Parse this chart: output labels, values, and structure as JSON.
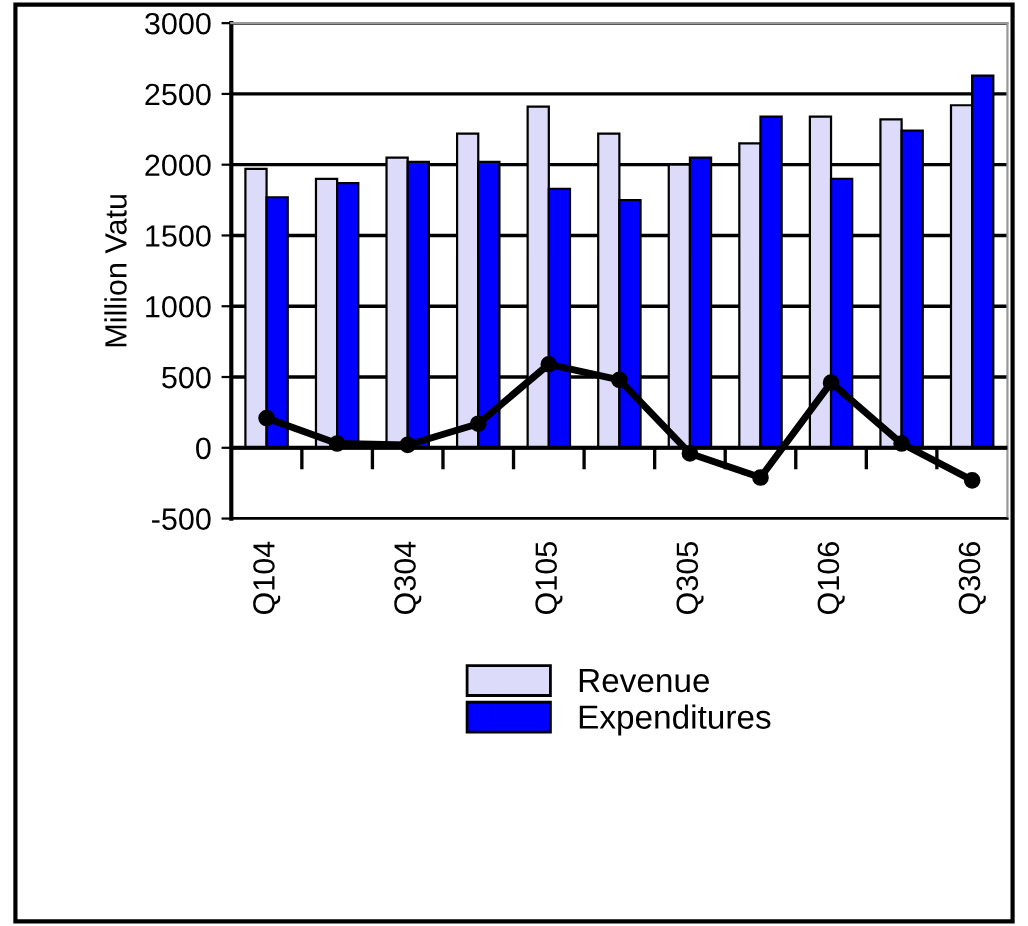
{
  "chart_data": {
    "type": "bar",
    "ylabel": "Million Vatu",
    "categories": [
      "Q104",
      null,
      "Q304",
      null,
      "Q105",
      null,
      "Q305",
      null,
      "Q106",
      null,
      "Q306"
    ],
    "series": [
      {
        "name": "Revenue",
        "color": "#dcdcfa",
        "values": [
          1970,
          1900,
          2050,
          2220,
          2410,
          2220,
          2000,
          2150,
          2340,
          2320,
          2420
        ]
      },
      {
        "name": "Expenditures",
        "color": "#0000ff",
        "values": [
          1770,
          1870,
          2020,
          2020,
          1830,
          1750,
          2050,
          2340,
          1900,
          2240,
          2630
        ]
      },
      {
        "type": "line",
        "color": "#000000",
        "values": [
          210,
          30,
          20,
          170,
          590,
          480,
          -40,
          -210,
          460,
          30,
          -230
        ],
        "marker": "circle"
      }
    ],
    "ylim": [
      -500,
      3000
    ],
    "yticks": [
      -500,
      0,
      500,
      1000,
      1500,
      2000,
      2500,
      3000
    ],
    "grid": "y",
    "legend": "bottom"
  }
}
